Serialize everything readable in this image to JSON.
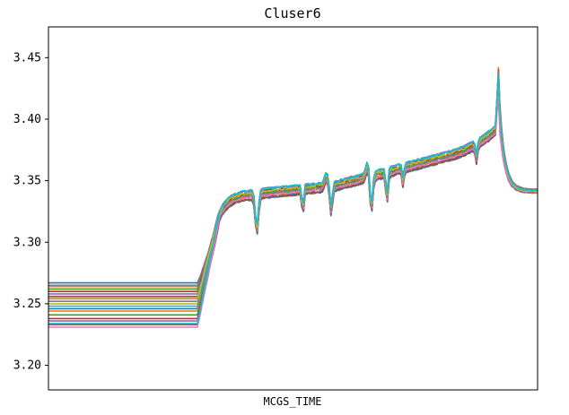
{
  "chart_data": {
    "type": "line",
    "title": "Cluser6",
    "xlabel": "MCGS_TIME",
    "ylabel": "",
    "ylim": [
      3.18,
      3.475
    ],
    "xlim": [
      0,
      100
    ],
    "yticks": [
      3.2,
      3.25,
      3.3,
      3.35,
      3.4,
      3.45
    ],
    "ytick_labels": [
      "3.20",
      "3.25",
      "3.30",
      "3.35",
      "3.40",
      "3.45"
    ],
    "xticks": [],
    "grid": false,
    "legend": "none",
    "palette": [
      "#1f77b4",
      "#ff7f0e",
      "#2ca02c",
      "#d62728",
      "#9467bd",
      "#8c564b",
      "#e377c2",
      "#7f7f7f",
      "#bcbd22",
      "#17becf"
    ],
    "series": [
      {
        "y_start": 3.267,
        "y_end": 3.342,
        "spike": 3.438
      },
      {
        "y_start": 3.264,
        "y_end": 3.343,
        "spike": 3.442
      },
      {
        "y_start": 3.262,
        "y_end": 3.341,
        "spike": 3.436
      },
      {
        "y_start": 3.26,
        "y_end": 3.342,
        "spike": 3.44
      },
      {
        "y_start": 3.258,
        "y_end": 3.34,
        "spike": 3.433
      },
      {
        "y_start": 3.256,
        "y_end": 3.343,
        "spike": 3.437
      },
      {
        "y_start": 3.254,
        "y_end": 3.341,
        "spike": 3.431
      },
      {
        "y_start": 3.252,
        "y_end": 3.342,
        "spike": 3.435
      },
      {
        "y_start": 3.25,
        "y_end": 3.34,
        "spike": 3.428
      },
      {
        "y_start": 3.248,
        "y_end": 3.341,
        "spike": 3.432
      },
      {
        "y_start": 3.246,
        "y_end": 3.342,
        "spike": 3.426
      },
      {
        "y_start": 3.244,
        "y_end": 3.34,
        "spike": 3.43
      },
      {
        "y_start": 3.241,
        "y_end": 3.341,
        "spike": 3.424
      },
      {
        "y_start": 3.238,
        "y_end": 3.342,
        "spike": 3.428
      },
      {
        "y_start": 3.236,
        "y_end": 3.34,
        "spike": 3.421
      },
      {
        "y_start": 3.233,
        "y_end": 3.341,
        "spike": 3.425
      },
      {
        "y_start": 3.231,
        "y_end": 3.342,
        "spike": 3.419
      },
      {
        "y_start": 3.265,
        "y_end": 3.343,
        "spike": 3.439
      },
      {
        "y_start": 3.255,
        "y_end": 3.341,
        "spike": 3.434
      },
      {
        "y_start": 3.234,
        "y_end": 3.342,
        "spike": 3.436
      }
    ]
  }
}
